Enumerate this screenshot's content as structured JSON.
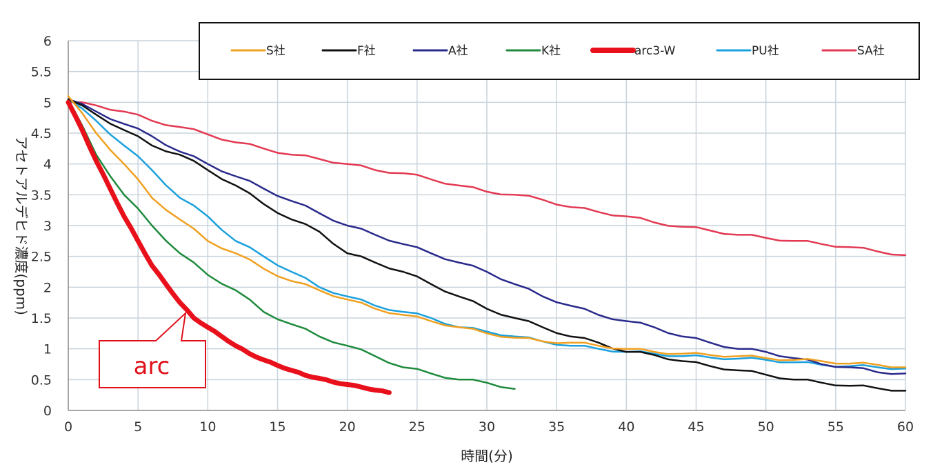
{
  "chart_data": {
    "type": "line",
    "xlabel": "時間(分)",
    "ylabel": "アセトアルデヒド濃度(ppm)",
    "xlim": [
      0,
      60
    ],
    "ylim": [
      0,
      6
    ],
    "x_ticks": [
      "0",
      "5",
      "10",
      "15",
      "20",
      "25",
      "30",
      "35",
      "40",
      "45",
      "50",
      "55",
      "60"
    ],
    "y_ticks": [
      "0",
      "0.5",
      "1",
      "1.5",
      "2",
      "2.5",
      "3",
      "3.5",
      "4",
      "4.5",
      "5",
      "5.5",
      "6"
    ],
    "grid": true,
    "legend_position": "top",
    "annotation": {
      "text": "arc",
      "points_to": {
        "x": 8.5,
        "y": 1.6
      }
    },
    "series": [
      {
        "name": "S社",
        "color": "#f0a020",
        "width": 2.5,
        "x": [
          0,
          2,
          4,
          6,
          8,
          10,
          12,
          14,
          16,
          18,
          20,
          22,
          24,
          26,
          28,
          30,
          32,
          34,
          36,
          38,
          40,
          42,
          44,
          46,
          48,
          50,
          52,
          54,
          56,
          58,
          60
        ],
        "y": [
          5.1,
          4.5,
          4.0,
          3.45,
          3.1,
          2.75,
          2.55,
          2.3,
          2.1,
          1.95,
          1.8,
          1.65,
          1.55,
          1.45,
          1.35,
          1.25,
          1.18,
          1.12,
          1.1,
          1.05,
          1.0,
          0.95,
          0.92,
          0.9,
          0.88,
          0.85,
          0.82,
          0.8,
          0.76,
          0.74,
          0.7
        ]
      },
      {
        "name": "F社",
        "color": "#111111",
        "width": 2.5,
        "x": [
          0,
          2,
          4,
          6,
          8,
          10,
          12,
          14,
          16,
          18,
          20,
          22,
          24,
          26,
          28,
          30,
          32,
          34,
          36,
          38,
          40,
          42,
          44,
          46,
          48,
          50,
          52,
          54,
          56,
          58,
          60
        ],
        "y": [
          5.05,
          4.8,
          4.55,
          4.3,
          4.15,
          3.9,
          3.65,
          3.35,
          3.1,
          2.9,
          2.55,
          2.4,
          2.25,
          2.05,
          1.85,
          1.65,
          1.5,
          1.35,
          1.2,
          1.1,
          0.95,
          0.9,
          0.8,
          0.72,
          0.65,
          0.58,
          0.5,
          0.45,
          0.4,
          0.36,
          0.32
        ]
      },
      {
        "name": "A社",
        "color": "#2a2a8c",
        "width": 2.5,
        "x": [
          0,
          2,
          4,
          6,
          8,
          10,
          12,
          14,
          16,
          18,
          20,
          22,
          24,
          26,
          28,
          30,
          32,
          34,
          36,
          38,
          40,
          42,
          44,
          46,
          48,
          50,
          52,
          54,
          56,
          58,
          60
        ],
        "y": [
          5.05,
          4.85,
          4.65,
          4.45,
          4.2,
          4.0,
          3.8,
          3.6,
          3.4,
          3.2,
          3.0,
          2.85,
          2.7,
          2.55,
          2.4,
          2.25,
          2.05,
          1.85,
          1.7,
          1.55,
          1.45,
          1.35,
          1.2,
          1.1,
          1.0,
          0.95,
          0.85,
          0.75,
          0.7,
          0.62,
          0.6
        ]
      },
      {
        "name": "K社",
        "color": "#1e8a3c",
        "width": 2.5,
        "x": [
          0,
          2,
          4,
          6,
          8,
          10,
          12,
          14,
          16,
          18,
          20,
          22,
          24,
          26,
          28,
          30,
          32
        ],
        "y": [
          5.05,
          4.15,
          3.5,
          3.0,
          2.55,
          2.2,
          1.95,
          1.6,
          1.4,
          1.2,
          1.05,
          0.88,
          0.7,
          0.6,
          0.5,
          0.45,
          0.35
        ]
      },
      {
        "name": "arc3-W",
        "color": "#e8101a",
        "width": 7,
        "x": [
          0,
          1,
          2,
          3,
          4,
          5,
          6,
          7,
          8,
          9,
          10,
          11,
          12,
          13,
          14,
          15,
          16,
          17,
          18,
          19,
          20,
          21,
          22,
          23
        ],
        "y": [
          5.0,
          4.55,
          4.05,
          3.6,
          3.15,
          2.75,
          2.35,
          2.05,
          1.75,
          1.5,
          1.35,
          1.2,
          1.05,
          0.92,
          0.82,
          0.73,
          0.65,
          0.57,
          0.52,
          0.46,
          0.42,
          0.38,
          0.33,
          0.29
        ]
      },
      {
        "name": "PU社",
        "color": "#1aa0dc",
        "width": 2.5,
        "x": [
          0,
          2,
          4,
          6,
          8,
          10,
          12,
          14,
          16,
          18,
          20,
          22,
          24,
          26,
          28,
          30,
          32,
          34,
          36,
          38,
          40,
          42,
          44,
          46,
          48,
          50,
          52,
          54,
          56,
          58,
          60
        ],
        "y": [
          5.05,
          4.7,
          4.3,
          3.9,
          3.45,
          3.15,
          2.75,
          2.5,
          2.25,
          2.0,
          1.85,
          1.7,
          1.6,
          1.5,
          1.35,
          1.28,
          1.2,
          1.12,
          1.05,
          1.0,
          0.95,
          0.92,
          0.88,
          0.86,
          0.84,
          0.82,
          0.78,
          0.74,
          0.72,
          0.7,
          0.68
        ]
      },
      {
        "name": "SA社",
        "color": "#e23a52",
        "width": 2.5,
        "x": [
          0,
          2,
          4,
          6,
          8,
          10,
          12,
          14,
          16,
          18,
          20,
          22,
          24,
          26,
          28,
          30,
          32,
          34,
          36,
          38,
          40,
          42,
          44,
          46,
          48,
          50,
          52,
          54,
          56,
          58,
          60
        ],
        "y": [
          5.0,
          4.95,
          4.85,
          4.7,
          4.6,
          4.48,
          4.35,
          4.25,
          4.15,
          4.08,
          4.0,
          3.9,
          3.85,
          3.75,
          3.65,
          3.55,
          3.5,
          3.42,
          3.3,
          3.22,
          3.15,
          3.05,
          2.98,
          2.92,
          2.85,
          2.8,
          2.75,
          2.7,
          2.65,
          2.58,
          2.52
        ]
      }
    ]
  }
}
